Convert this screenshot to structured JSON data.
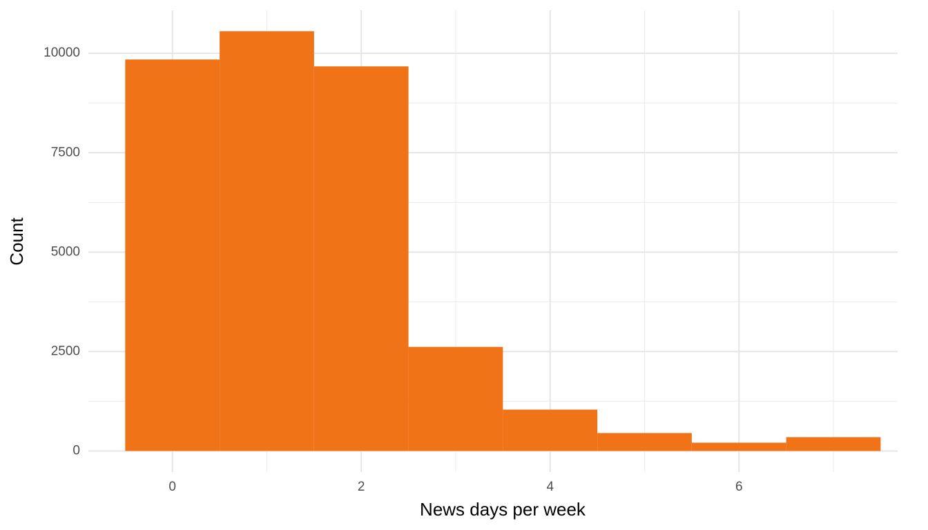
{
  "chart_data": {
    "type": "histogram",
    "x_label": "News days per week",
    "y_label": "Count",
    "bins": [
      -0.5,
      0.5,
      1.5,
      2.5,
      3.5,
      4.5,
      5.5,
      6.5,
      7.5
    ],
    "values": [
      9844,
      10555,
      9671,
      2617,
      1040,
      451,
      208,
      347
    ],
    "color": "#f07318",
    "xlim": [
      -0.89,
      7.68
    ],
    "xticks": [
      0,
      2,
      4,
      6
    ],
    "ylim": [
      -530,
      11080
    ],
    "yticks": [
      0,
      2500,
      5000,
      7500,
      10000
    ],
    "grid": true
  }
}
